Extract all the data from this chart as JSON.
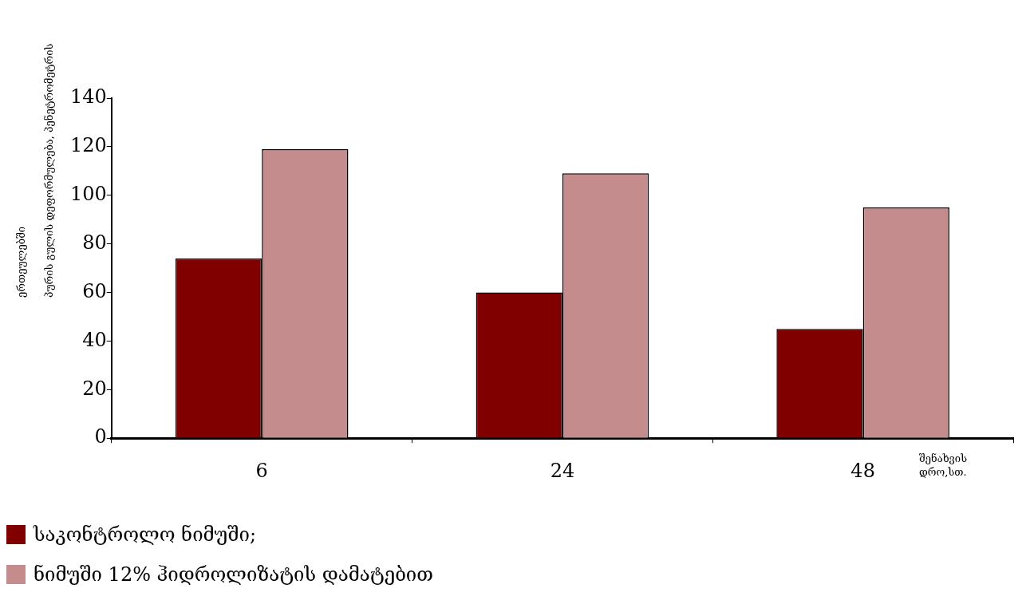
{
  "chart_data": {
    "type": "bar",
    "xlabel": "შენახვის\nდრო,სთ.",
    "ylabel": "პურის გულის დეფორმულება, პენეტრომეტრის\nერთეულებში",
    "categories": [
      "6",
      "24",
      "48"
    ],
    "series": [
      {
        "name": "საკონტროლო ნიმუში;",
        "color": "#800000",
        "values": [
          74,
          60,
          45
        ]
      },
      {
        "name": "ნიმუში 12% ჰიდროლიზატის დამატებით",
        "color": "#c48c8c",
        "values": [
          119,
          109,
          95
        ]
      }
    ],
    "ylim": [
      0,
      140
    ],
    "yticks": [
      0,
      20,
      40,
      60,
      80,
      100,
      120,
      140
    ],
    "grid": false,
    "legend": "bottom left"
  }
}
